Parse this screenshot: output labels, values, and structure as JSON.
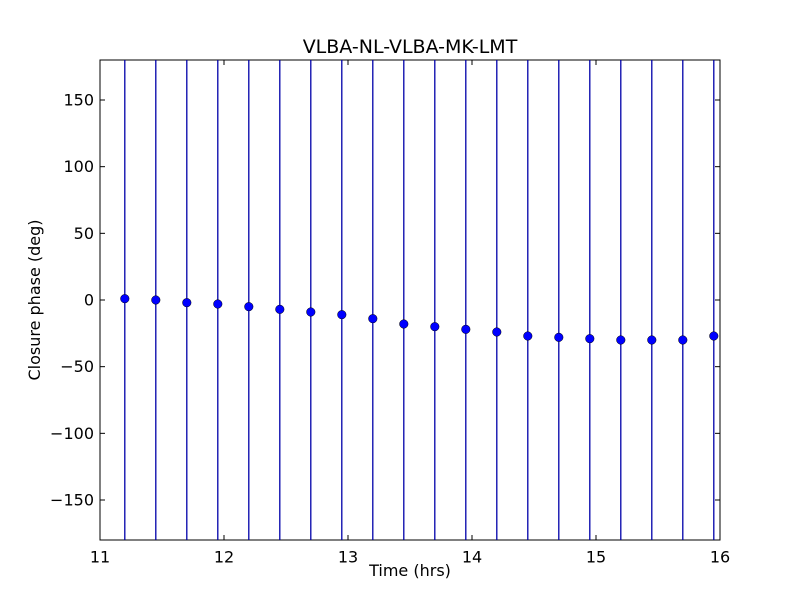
{
  "chart_data": {
    "type": "scatter",
    "title": "VLBA-NL-VLBA-MK-LMT",
    "xlabel": "Time (hrs)",
    "ylabel": "Closure phase (deg)",
    "xlim": [
      11,
      16
    ],
    "ylim": [
      -180,
      180
    ],
    "x_ticks": [
      11,
      12,
      13,
      14,
      15,
      16
    ],
    "x_tick_labels": [
      "11",
      "12",
      "13",
      "14",
      "15",
      "16"
    ],
    "y_ticks": [
      150,
      100,
      50,
      0,
      -50,
      -100,
      -150
    ],
    "y_tick_labels": [
      "150",
      "100",
      "50",
      "0",
      "−50",
      "−100",
      "−150"
    ],
    "grid": false,
    "marker_color": "#0000ff",
    "errorbar_color": "#0000aa",
    "series": [
      {
        "x": [
          11.2,
          11.45,
          11.7,
          11.95,
          12.2,
          12.45,
          12.7,
          12.95,
          13.2,
          13.45,
          13.7,
          13.95,
          14.2,
          14.45,
          14.7,
          14.95,
          15.2,
          15.45,
          15.7,
          15.95
        ],
        "y": [
          1,
          0,
          -2,
          -3,
          -5,
          -7,
          -9,
          -11,
          -14,
          -18,
          -20,
          -22,
          -24,
          -27,
          -28,
          -29,
          -30,
          -30,
          -30,
          -27
        ],
        "yerr_full_range": true
      }
    ]
  }
}
